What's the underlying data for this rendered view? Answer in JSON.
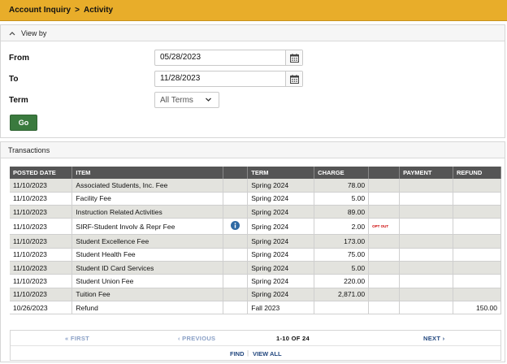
{
  "breadcrumb": {
    "parent": "Account Inquiry",
    "separator": ">",
    "current": "Activity"
  },
  "view_by": {
    "title": "View by",
    "from_label": "From",
    "from_value": "05/28/2023",
    "to_label": "To",
    "to_value": "11/28/2023",
    "term_label": "Term",
    "term_value": "All Terms",
    "go_label": "Go"
  },
  "transactions": {
    "title": "Transactions",
    "columns": [
      "POSTED DATE",
      "ITEM",
      "",
      "TERM",
      "CHARGE",
      "",
      "PAYMENT",
      "REFUND"
    ],
    "rows": [
      {
        "date": "11/10/2023",
        "item": "Associated Students, Inc. Fee",
        "term": "Spring 2024",
        "charge": "78.00",
        "optout": "",
        "payment": "",
        "refund": ""
      },
      {
        "date": "11/10/2023",
        "item": "Facility Fee",
        "term": "Spring 2024",
        "charge": "5.00",
        "optout": "",
        "payment": "",
        "refund": ""
      },
      {
        "date": "11/10/2023",
        "item": "Instruction Related Activities",
        "term": "Spring 2024",
        "charge": "89.00",
        "optout": "",
        "payment": "",
        "refund": ""
      },
      {
        "date": "11/10/2023",
        "item": "SIRF-Student Involv & Repr Fee",
        "term": "Spring 2024",
        "charge": "2.00",
        "optout": "OPT OUT",
        "payment": "",
        "refund": ""
      },
      {
        "date": "11/10/2023",
        "item": "Student Excellence Fee",
        "term": "Spring 2024",
        "charge": "173.00",
        "optout": "",
        "payment": "",
        "refund": ""
      },
      {
        "date": "11/10/2023",
        "item": "Student Health Fee",
        "term": "Spring 2024",
        "charge": "75.00",
        "optout": "",
        "payment": "",
        "refund": ""
      },
      {
        "date": "11/10/2023",
        "item": "Student ID Card Services",
        "term": "Spring 2024",
        "charge": "5.00",
        "optout": "",
        "payment": "",
        "refund": ""
      },
      {
        "date": "11/10/2023",
        "item": "Student Union Fee",
        "term": "Spring 2024",
        "charge": "220.00",
        "optout": "",
        "payment": "",
        "refund": ""
      },
      {
        "date": "11/10/2023",
        "item": "Tuition Fee",
        "term": "Spring 2024",
        "charge": "2,871.00",
        "optout": "",
        "payment": "",
        "refund": ""
      },
      {
        "date": "10/26/2023",
        "item": "Refund",
        "term": "Fall 2023",
        "charge": "",
        "optout": "",
        "payment": "",
        "refund": "150.00"
      }
    ]
  },
  "pager": {
    "first": "« FIRST",
    "previous": "‹ PREVIOUS",
    "count": "1-10 OF 24",
    "next": "NEXT ›",
    "find": "FIND",
    "divider": "|",
    "view_all": "VIEW ALL"
  },
  "icons": {
    "calendar": "calendar-icon",
    "chevron": "chevron-down-icon",
    "collapse": "chevron-up-icon",
    "info": "info-icon"
  },
  "colors": {
    "header_bar": "#e8ad2a",
    "go_button": "#3a7a3e",
    "table_header": "#555555",
    "info_icon": "#2f6aa3",
    "opt_out": "#cc0000"
  }
}
